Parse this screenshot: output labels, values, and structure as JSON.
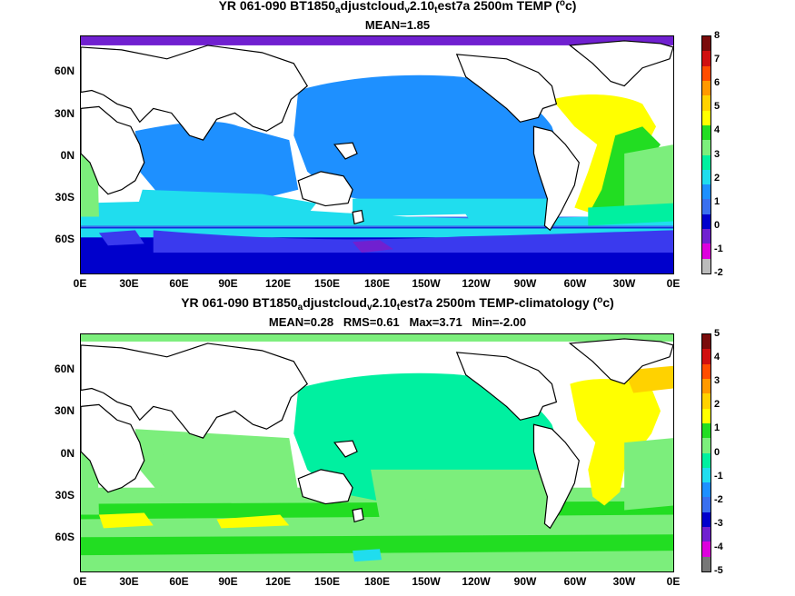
{
  "top": {
    "title_prefix": "YR 061-090 BT1850",
    "title_sub1": "a",
    "title_mid1": "djustcloud",
    "title_sub2": "v",
    "title_mid2": "2.10",
    "title_sub3": "t",
    "title_mid3": "est7a 2500m TEMP (",
    "title_sup": "o",
    "title_end": "c)",
    "stats": "MEAN=1.85",
    "colorbar_labels": [
      "8",
      "7",
      "6",
      "5",
      "4",
      "3",
      "2",
      "1",
      "0",
      "-1",
      "-2"
    ],
    "colorbar_colors": [
      "#7a0c0c",
      "#d01010",
      "#ff4d00",
      "#ff9900",
      "#ffd200",
      "#ffff00",
      "#22dd22",
      "#7cee7c",
      "#00f0a0",
      "#20ddee",
      "#1e90ff",
      "#3a70ee",
      "#0000cc",
      "#7020d0",
      "#dd00dd",
      "#bbbbbb"
    ]
  },
  "bottom": {
    "title_prefix": "YR 061-090 BT1850",
    "title_sub1": "a",
    "title_mid1": "djustcloud",
    "title_sub2": "v",
    "title_mid2": "2.10",
    "title_sub3": "t",
    "title_mid3": "est7a 2500m TEMP-climatology (",
    "title_sup": "o",
    "title_end": "c)",
    "stats": "MEAN=0.28   RMS=0.61   Max=3.71   Min=-2.00",
    "colorbar_labels": [
      "5",
      "4",
      "3",
      "2",
      "1",
      "0",
      "-1",
      "-2",
      "-3",
      "-4",
      "-5"
    ],
    "colorbar_colors": [
      "#7a0c0c",
      "#d01010",
      "#ff4d00",
      "#ff9900",
      "#ffd200",
      "#ffff00",
      "#22dd22",
      "#7cee7c",
      "#00f0a0",
      "#20ddee",
      "#1e90ff",
      "#3a70ee",
      "#0000cc",
      "#7020d0",
      "#dd00dd",
      "#777777"
    ]
  },
  "lat_labels": [
    "60N",
    "30N",
    "0N",
    "30S",
    "60S"
  ],
  "lon_labels": [
    "0E",
    "30E",
    "60E",
    "90E",
    "120E",
    "150E",
    "180E",
    "150W",
    "120W",
    "90W",
    "60W",
    "30W",
    "0E"
  ]
}
